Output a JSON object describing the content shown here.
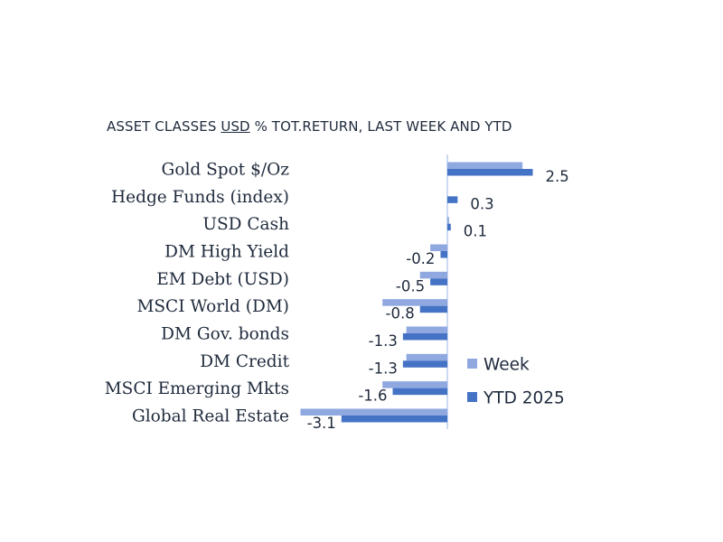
{
  "chart_data": {
    "type": "bar",
    "orientation": "horizontal",
    "title_parts": [
      "ASSET CLASSES ",
      "USD",
      " % TOT.RETURN, LAST WEEK AND YTD"
    ],
    "categories": [
      "Gold Spot   $/Oz",
      "Hedge Funds (index)",
      "USD Cash",
      "DM High Yield",
      "EM Debt (USD)",
      "MSCI World (DM)",
      "DM Gov. bonds",
      "DM Credit",
      "MSCI Emerging Mkts",
      "Global Real Estate"
    ],
    "series": [
      {
        "name": "Week",
        "color": "#8fa8e0",
        "values": [
          2.2,
          0.0,
          0.05,
          -0.5,
          -0.8,
          -1.9,
          -1.2,
          -1.2,
          -1.9,
          -4.3
        ]
      },
      {
        "name": "YTD 2025",
        "color": "#4472c4",
        "values": [
          2.5,
          0.3,
          0.1,
          -0.2,
          -0.5,
          -0.8,
          -1.3,
          -1.3,
          -1.6,
          -3.1
        ]
      }
    ],
    "data_labels": [
      "2.5",
      "0.3",
      "0.1",
      "-0.2",
      "-0.5",
      "-0.8",
      "-1.3",
      "-1.3",
      "-1.6",
      "-3.1"
    ],
    "legend_position": "right",
    "grid": false,
    "axis_color": "#a9c2e8"
  }
}
